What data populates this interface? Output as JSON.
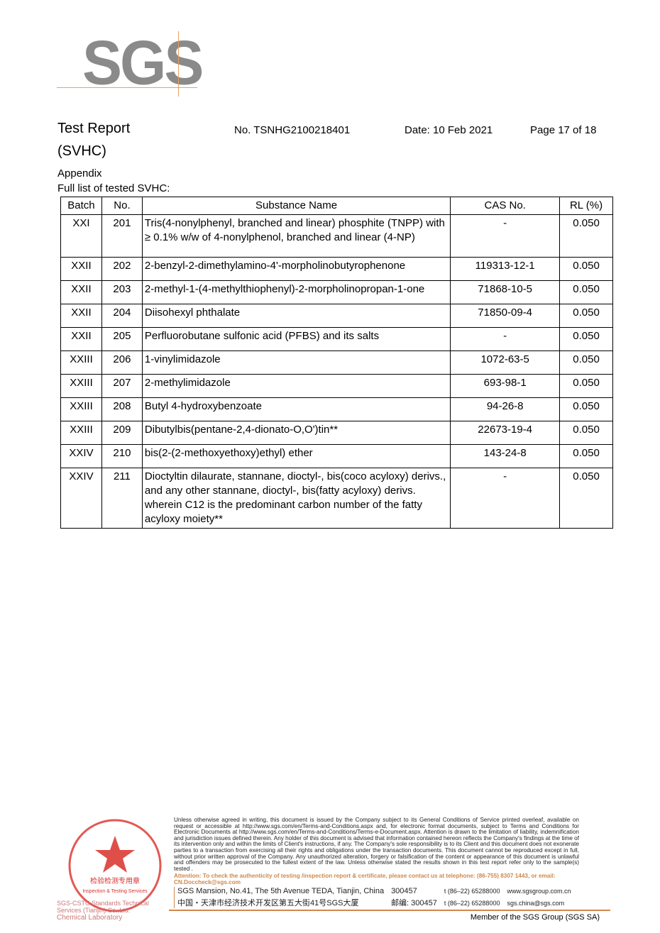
{
  "logo": {
    "text": "SGS",
    "color": "#8a8a8a",
    "accent": "#e8a060"
  },
  "header": {
    "title": "Test Report",
    "subtitle": "(SVHC)",
    "report_no": "No. TSNHG2100218401",
    "date": "Date: 10 Feb 2021",
    "page": "Page 17 of 18"
  },
  "section": {
    "appendix": "Appendix",
    "list_title": "Full list of tested SVHC:"
  },
  "table": {
    "columns": [
      "Batch",
      "No.",
      "Substance Name",
      "CAS No.",
      "RL (%)"
    ],
    "rows": [
      {
        "batch": "XXI",
        "no": "201",
        "name": "Tris(4-nonylphenyl, branched and linear) phosphite (TNPP) with ≥ 0.1% w/w of 4-nonylphenol, branched and linear (4-NP)",
        "cas": "-",
        "rl": "0.050"
      },
      {
        "batch": "XXII",
        "no": "202",
        "name": "2-benzyl-2-dimethylamino-4'-morpholinobutyrophenone",
        "cas": "119313-12-1",
        "rl": "0.050"
      },
      {
        "batch": "XXII",
        "no": "203",
        "name": "2-methyl-1-(4-methylthiophenyl)-2-morpholinopropan-1-one",
        "cas": "71868-10-5",
        "rl": "0.050"
      },
      {
        "batch": "XXII",
        "no": "204",
        "name": "Diisohexyl phthalate",
        "cas": "71850-09-4",
        "rl": "0.050"
      },
      {
        "batch": "XXII",
        "no": "205",
        "name": "Perfluorobutane sulfonic acid (PFBS) and its salts",
        "cas": "-",
        "rl": "0.050"
      },
      {
        "batch": "XXIII",
        "no": "206",
        "name": "1-vinylimidazole",
        "cas": "1072-63-5",
        "rl": "0.050"
      },
      {
        "batch": "XXIII",
        "no": "207",
        "name": "2-methylimidazole",
        "cas": "693-98-1",
        "rl": "0.050"
      },
      {
        "batch": "XXIII",
        "no": "208",
        "name": "Butyl 4-hydroxybenzoate",
        "cas": "94-26-8",
        "rl": "0.050"
      },
      {
        "batch": "XXIII",
        "no": "209",
        "name": "Dibutylbis(pentane-2,4-dionato-O,O')tin**",
        "cas": "22673-19-4",
        "rl": "0.050"
      },
      {
        "batch": "XXIV",
        "no": "210",
        "name": "bis(2-(2-methoxyethoxy)ethyl) ether",
        "cas": "143-24-8",
        "rl": "0.050"
      },
      {
        "batch": "XXIV",
        "no": "211",
        "name": "Dioctyltin dilaurate, stannane, dioctyl-, bis(coco acyloxy) derivs., and any other stannane, dioctyl-, bis(fatty acyloxy) derivs. wherein C12 is the predominant carbon number of the fatty acyloxy moiety**",
        "cas": "-",
        "rl": "0.050"
      }
    ]
  },
  "stamp": {
    "text_cn": "通标标准技术服务(天津)有限公司 检验检测专用章",
    "text_en": "Inspection & Testing Services",
    "company": "SGS-CSTC Standards Technical Services (Tianjin) Co.,Ltd.",
    "lab": "Chemical Laboratory",
    "color": "#d9302a"
  },
  "footer": {
    "legal": "Unless otherwise agreed in writing, this document is issued by the Company subject to its General Conditions of Service printed overleaf, available on request or accessible at http://www.sgs.com/en/Terms-and-Conditions.aspx and, for electronic format documents, subject to Terms and Conditions for Electronic Documents at http://www.sgs.com/en/Terms-and-Conditions/Terms-e-Document.aspx. Attention is drawn to the limitation of liability, indemnification and jurisdiction issues defined therein. Any holder of this document is advised that information contained hereon reflects the Company's findings at the time of its intervention only and within the limits of Client's instructions, if any. The Company's sole responsibility is to its Client and this document does not exonerate parties to a transaction from exercising all their rights and obligations under the transaction documents. This document cannot be reproduced except in full, without prior written approval of the Company. Any unauthorized alteration, forgery or falsification of the content or appearance of this document is unlawful and offenders may be prosecuted to the fullest extent of the law. Unless otherwise stated the results shown in this test report refer only to the sample(s) tested .",
    "attention": "Attention: To check the authenticity of testing /inspection report & certificate, please contact us at telephone: (86-755) 8307 1443, or email: CN.Doccheck@sgs.com",
    "address_en": "SGS Mansion, No.41, The 5th Avenue TEDA, Tianjin, China",
    "postcode_en": "300457",
    "phone1": "t (86–22) 65288000",
    "web": "www.sgsgroup.com.cn",
    "address_cn": "中国・天津市经济技术开发区第五大街41号SGS大厦",
    "postcode_cn": "邮编: 300457",
    "phone2": "t (86–22) 65288000",
    "email": "sgs.china@sgs.com",
    "member": "Member of the SGS Group (SGS SA)"
  }
}
